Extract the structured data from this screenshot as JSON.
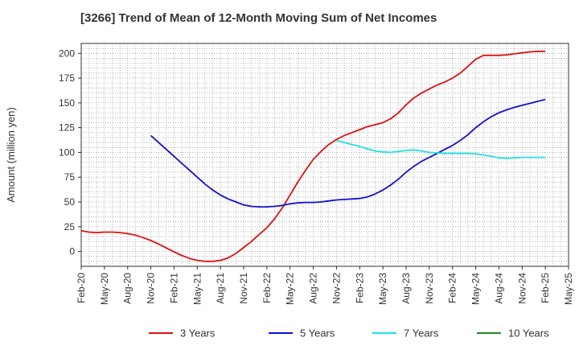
{
  "chart_data": {
    "type": "line",
    "title": "[3266]  Trend of Mean of 12-Month Moving Sum of Net Incomes",
    "xlabel": "",
    "ylabel": "Amount (million yen)",
    "ylim": [
      -15,
      210
    ],
    "yticks": [
      0,
      25,
      50,
      75,
      100,
      125,
      150,
      175,
      200
    ],
    "xlim": [
      "2020-02",
      "2025-05"
    ],
    "xticks": [
      "Feb-20",
      "May-20",
      "Aug-20",
      "Nov-20",
      "Feb-21",
      "May-21",
      "Aug-21",
      "Nov-21",
      "Feb-22",
      "May-22",
      "Aug-22",
      "Nov-22",
      "Feb-23",
      "May-23",
      "Aug-23",
      "Nov-23",
      "Feb-24",
      "May-24",
      "Aug-24",
      "Nov-24",
      "Feb-25",
      "May-25"
    ],
    "grid": true,
    "legend_position": "bottom",
    "series": [
      {
        "name": "3 Years",
        "color": "#dd1111",
        "points": [
          [
            "2020-02",
            21
          ],
          [
            "2020-03",
            19.5
          ],
          [
            "2020-04",
            19
          ],
          [
            "2020-05",
            19.5
          ],
          [
            "2020-06",
            19.5
          ],
          [
            "2020-07",
            19
          ],
          [
            "2020-08",
            18
          ],
          [
            "2020-09",
            16.5
          ],
          [
            "2020-10",
            14
          ],
          [
            "2020-11",
            11
          ],
          [
            "2020-12",
            7.5
          ],
          [
            "2021-01",
            3.5
          ],
          [
            "2021-02",
            -0.5
          ],
          [
            "2021-03",
            -4
          ],
          [
            "2021-04",
            -7
          ],
          [
            "2021-05",
            -9
          ],
          [
            "2021-06",
            -10
          ],
          [
            "2021-07",
            -10
          ],
          [
            "2021-08",
            -9
          ],
          [
            "2021-09",
            -6.5
          ],
          [
            "2021-10",
            -2
          ],
          [
            "2021-11",
            4
          ],
          [
            "2021-12",
            10
          ],
          [
            "2022-01",
            17
          ],
          [
            "2022-02",
            24
          ],
          [
            "2022-03",
            33
          ],
          [
            "2022-04",
            44
          ],
          [
            "2022-05",
            57
          ],
          [
            "2022-06",
            70
          ],
          [
            "2022-07",
            82
          ],
          [
            "2022-08",
            93
          ],
          [
            "2022-09",
            101
          ],
          [
            "2022-10",
            108
          ],
          [
            "2022-11",
            113
          ],
          [
            "2022-12",
            117
          ],
          [
            "2023-01",
            120
          ],
          [
            "2023-02",
            123
          ],
          [
            "2023-03",
            126
          ],
          [
            "2023-04",
            128
          ],
          [
            "2023-05",
            130
          ],
          [
            "2023-06",
            134
          ],
          [
            "2023-07",
            140
          ],
          [
            "2023-08",
            148
          ],
          [
            "2023-09",
            155
          ],
          [
            "2023-10",
            160
          ],
          [
            "2023-11",
            164
          ],
          [
            "2023-12",
            168
          ],
          [
            "2024-01",
            171
          ],
          [
            "2024-02",
            175
          ],
          [
            "2024-03",
            180
          ],
          [
            "2024-04",
            187
          ],
          [
            "2024-05",
            194
          ],
          [
            "2024-06",
            198
          ],
          [
            "2024-07",
            198
          ],
          [
            "2024-08",
            198
          ],
          [
            "2024-09",
            198.5
          ],
          [
            "2024-10",
            199.5
          ],
          [
            "2024-11",
            200.5
          ],
          [
            "2024-12",
            201.5
          ],
          [
            "2025-01",
            202
          ],
          [
            "2025-02",
            202
          ]
        ]
      },
      {
        "name": "5 Years",
        "color": "#1111cc",
        "points": [
          [
            "2020-11",
            117
          ],
          [
            "2020-12",
            110
          ],
          [
            "2021-01",
            103
          ],
          [
            "2021-02",
            96
          ],
          [
            "2021-03",
            89
          ],
          [
            "2021-04",
            82
          ],
          [
            "2021-05",
            75
          ],
          [
            "2021-06",
            68
          ],
          [
            "2021-07",
            62
          ],
          [
            "2021-08",
            57
          ],
          [
            "2021-09",
            53
          ],
          [
            "2021-10",
            50
          ],
          [
            "2021-11",
            47
          ],
          [
            "2021-12",
            45.5
          ],
          [
            "2022-01",
            45
          ],
          [
            "2022-02",
            45
          ],
          [
            "2022-03",
            45.5
          ],
          [
            "2022-04",
            46.5
          ],
          [
            "2022-05",
            48
          ],
          [
            "2022-06",
            49
          ],
          [
            "2022-07",
            49.5
          ],
          [
            "2022-08",
            49.5
          ],
          [
            "2022-09",
            50
          ],
          [
            "2022-10",
            51
          ],
          [
            "2022-11",
            52
          ],
          [
            "2022-12",
            52.5
          ],
          [
            "2023-01",
            53
          ],
          [
            "2023-02",
            53.5
          ],
          [
            "2023-03",
            55
          ],
          [
            "2023-04",
            58
          ],
          [
            "2023-05",
            62
          ],
          [
            "2023-06",
            67
          ],
          [
            "2023-07",
            73
          ],
          [
            "2023-08",
            80
          ],
          [
            "2023-09",
            86
          ],
          [
            "2023-10",
            91
          ],
          [
            "2023-11",
            95
          ],
          [
            "2023-12",
            99
          ],
          [
            "2024-01",
            103
          ],
          [
            "2024-02",
            107
          ],
          [
            "2024-03",
            112
          ],
          [
            "2024-04",
            118
          ],
          [
            "2024-05",
            125
          ],
          [
            "2024-06",
            131
          ],
          [
            "2024-07",
            136
          ],
          [
            "2024-08",
            140
          ],
          [
            "2024-09",
            143
          ],
          [
            "2024-10",
            145.5
          ],
          [
            "2024-11",
            147.5
          ],
          [
            "2024-12",
            149.5
          ],
          [
            "2025-01",
            151.5
          ],
          [
            "2025-02",
            153.5
          ]
        ]
      },
      {
        "name": "7 Years",
        "color": "#22e0e0",
        "points": [
          [
            "2022-11",
            112
          ],
          [
            "2022-12",
            110
          ],
          [
            "2023-01",
            108
          ],
          [
            "2023-02",
            106
          ],
          [
            "2023-03",
            103.5
          ],
          [
            "2023-04",
            101.5
          ],
          [
            "2023-05",
            100.5
          ],
          [
            "2023-06",
            100
          ],
          [
            "2023-07",
            101
          ],
          [
            "2023-08",
            102
          ],
          [
            "2023-09",
            102.5
          ],
          [
            "2023-10",
            101.5
          ],
          [
            "2023-11",
            100
          ],
          [
            "2023-12",
            99.5
          ],
          [
            "2024-01",
            99
          ],
          [
            "2024-02",
            99
          ],
          [
            "2024-03",
            99
          ],
          [
            "2024-04",
            99
          ],
          [
            "2024-05",
            98.5
          ],
          [
            "2024-06",
            97.5
          ],
          [
            "2024-07",
            96
          ],
          [
            "2024-08",
            94.5
          ],
          [
            "2024-09",
            94
          ],
          [
            "2024-10",
            94.5
          ],
          [
            "2024-11",
            95
          ],
          [
            "2024-12",
            95
          ],
          [
            "2025-01",
            95
          ],
          [
            "2025-02",
            95
          ]
        ]
      },
      {
        "name": "10 Years",
        "color": "#228b22",
        "points": []
      }
    ]
  }
}
